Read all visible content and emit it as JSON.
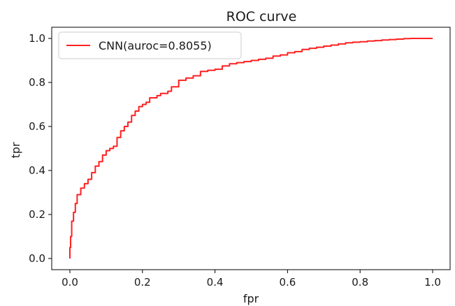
{
  "chart_data": {
    "type": "line",
    "title": "ROC curve",
    "xlabel": "fpr",
    "ylabel": "tpr",
    "xlim": [
      0,
      1
    ],
    "ylim": [
      0,
      1
    ],
    "x_ticks": [
      "0.0",
      "0.2",
      "0.4",
      "0.6",
      "0.8",
      "1.0"
    ],
    "y_ticks": [
      "0.0",
      "0.2",
      "0.4",
      "0.6",
      "0.8",
      "1.0"
    ],
    "grid": false,
    "legend_position": "top-left",
    "series": [
      {
        "name": "CNN(auroc=0.8055)",
        "color": "#ff2020",
        "x": [
          0.0,
          0.002,
          0.005,
          0.01,
          0.015,
          0.02,
          0.03,
          0.04,
          0.05,
          0.06,
          0.07,
          0.08,
          0.09,
          0.1,
          0.11,
          0.12,
          0.13,
          0.14,
          0.15,
          0.16,
          0.17,
          0.18,
          0.19,
          0.2,
          0.21,
          0.22,
          0.24,
          0.25,
          0.27,
          0.28,
          0.3,
          0.32,
          0.34,
          0.36,
          0.38,
          0.4,
          0.42,
          0.44,
          0.46,
          0.48,
          0.5,
          0.52,
          0.54,
          0.56,
          0.58,
          0.6,
          0.62,
          0.64,
          0.66,
          0.68,
          0.7,
          0.72,
          0.74,
          0.76,
          0.78,
          0.8,
          0.82,
          0.84,
          0.86,
          0.88,
          0.9,
          0.92,
          0.94,
          0.96,
          0.98,
          1.0
        ],
        "y": [
          0.0,
          0.05,
          0.1,
          0.17,
          0.21,
          0.25,
          0.29,
          0.32,
          0.34,
          0.36,
          0.39,
          0.42,
          0.44,
          0.47,
          0.49,
          0.5,
          0.51,
          0.55,
          0.58,
          0.6,
          0.62,
          0.65,
          0.67,
          0.69,
          0.7,
          0.71,
          0.73,
          0.74,
          0.75,
          0.76,
          0.78,
          0.81,
          0.82,
          0.83,
          0.85,
          0.855,
          0.86,
          0.875,
          0.885,
          0.89,
          0.895,
          0.9,
          0.905,
          0.91,
          0.92,
          0.925,
          0.935,
          0.94,
          0.95,
          0.955,
          0.96,
          0.965,
          0.97,
          0.975,
          0.98,
          0.983,
          0.985,
          0.988,
          0.99,
          0.993,
          0.995,
          0.997,
          0.999,
          1.0,
          1.0,
          1.0
        ]
      }
    ]
  }
}
